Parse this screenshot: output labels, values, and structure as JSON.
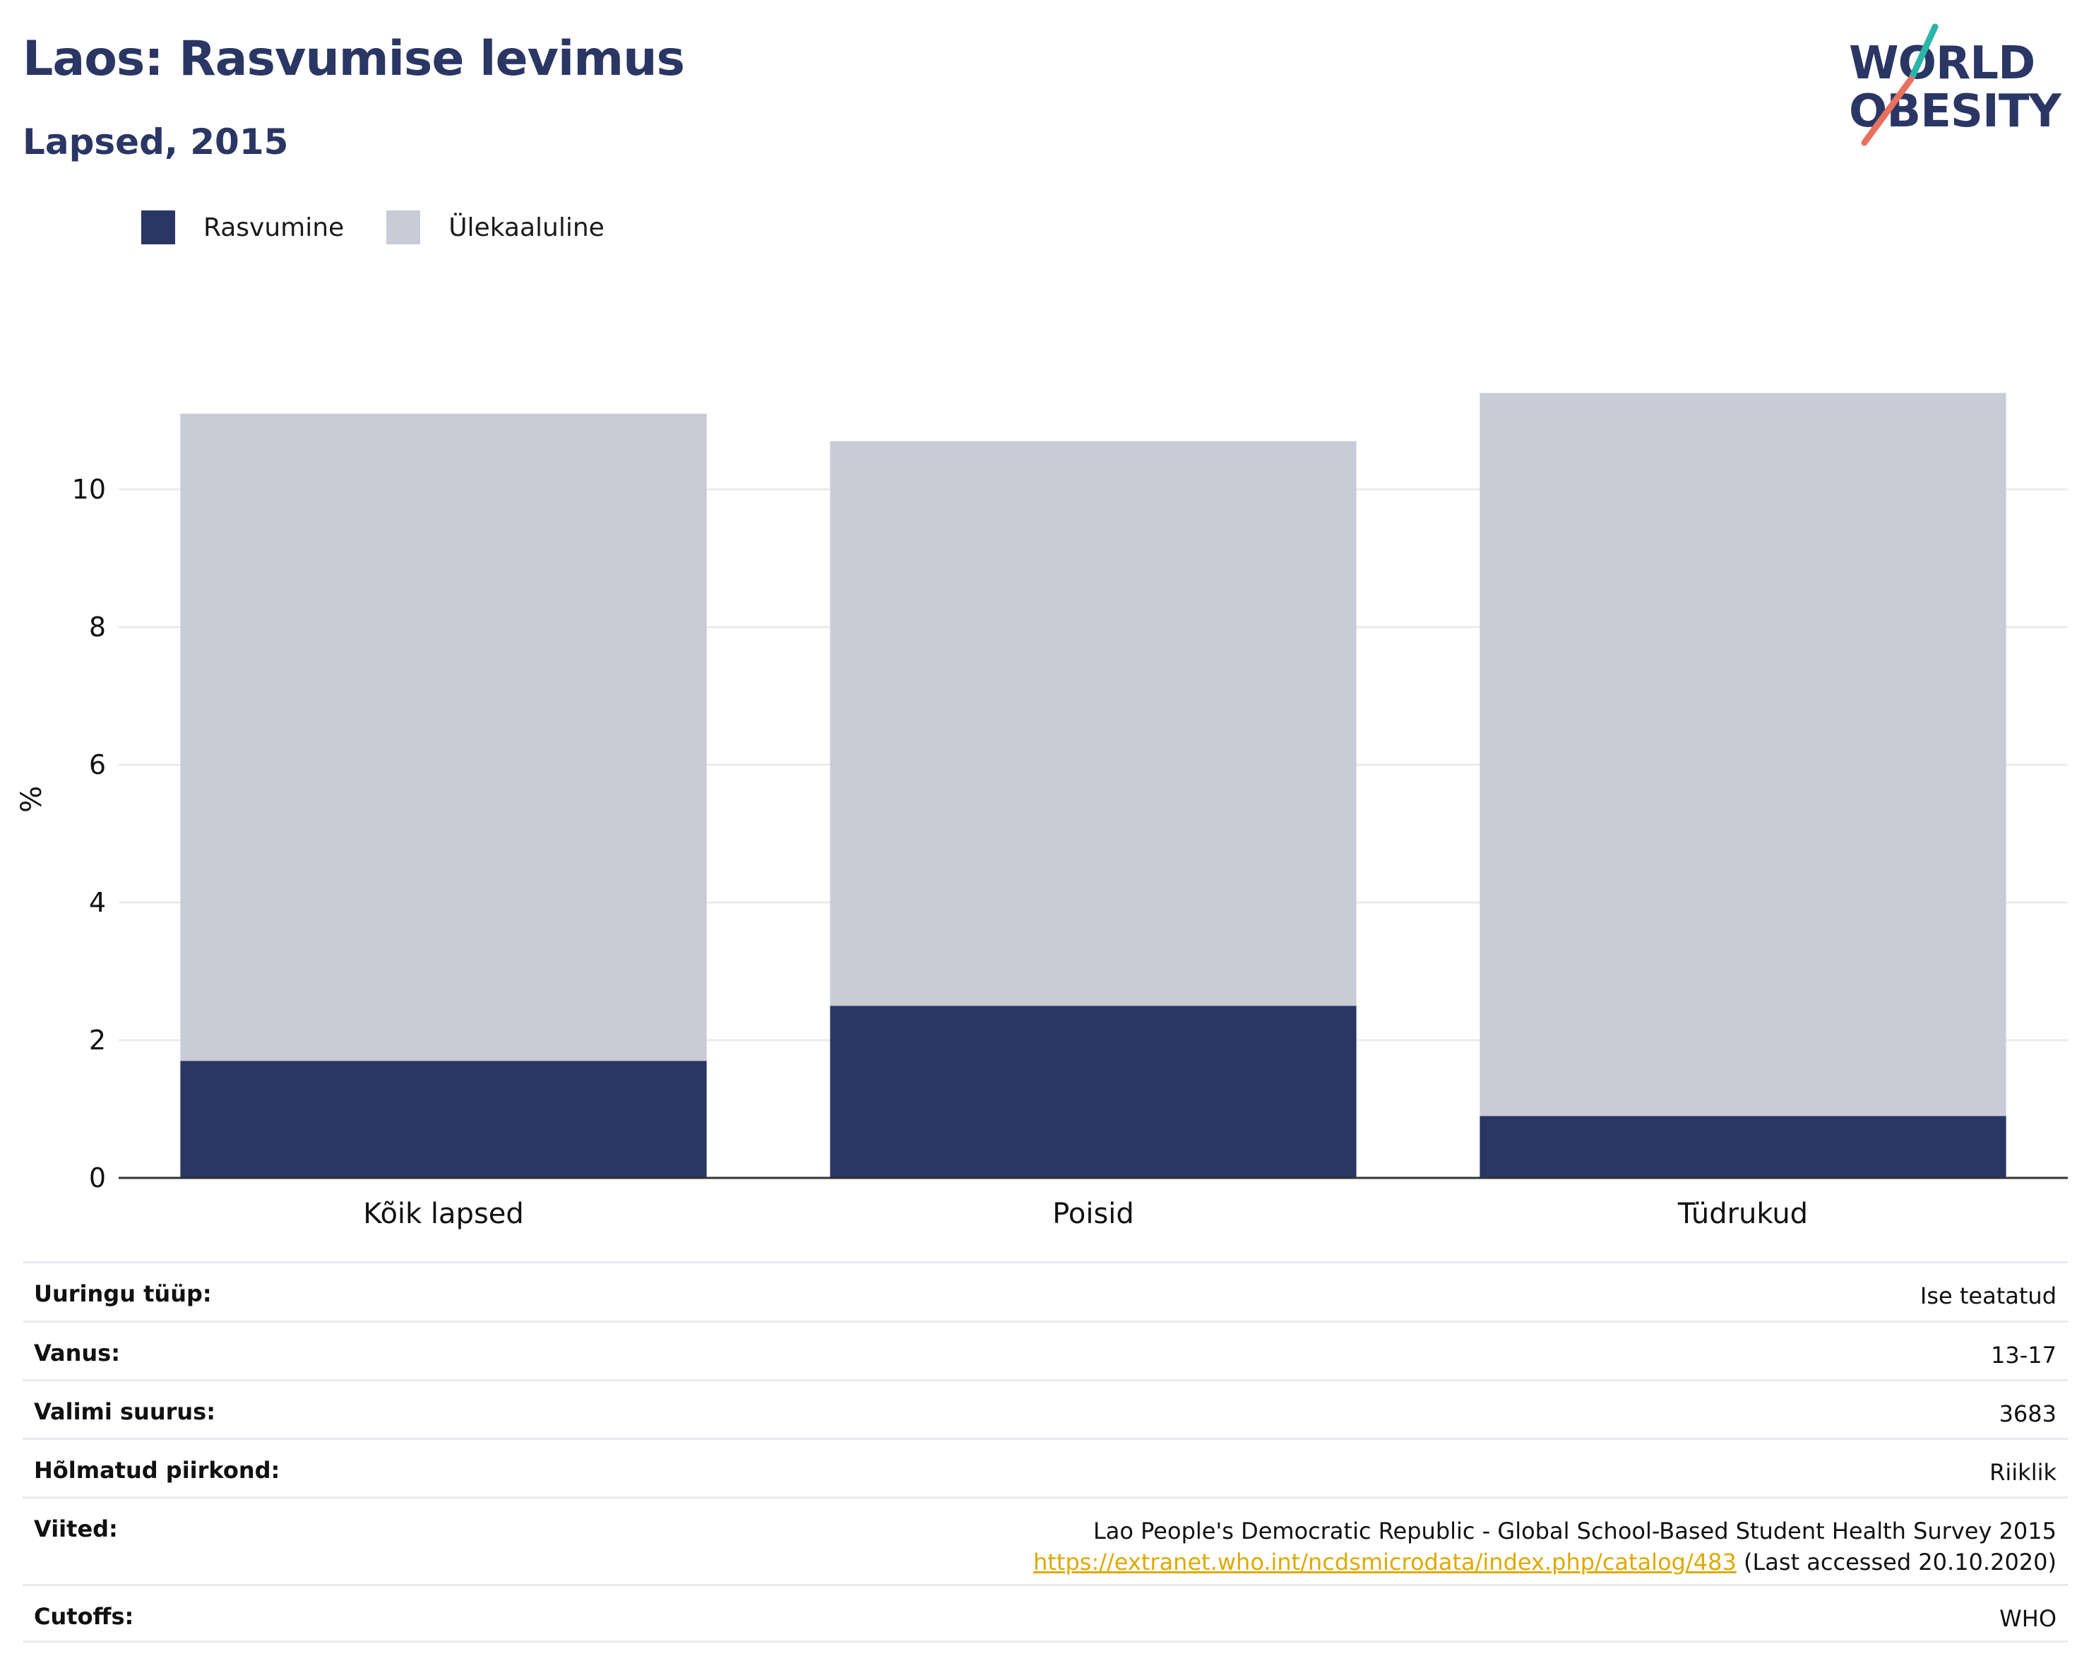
{
  "header": {
    "title": "Laos: Rasvumise levimus",
    "subtitle": "Lapsed, 2015"
  },
  "logo": {
    "line1": "WORLD",
    "line2": "OBESITY",
    "colors": {
      "navy": "#2a3663",
      "teal": "#2bb5a8",
      "coral": "#e8705f"
    }
  },
  "legend": [
    {
      "label": "Rasvumine",
      "color": "#2a3663"
    },
    {
      "label": "Ülekaaluline",
      "color": "#c9cbd6"
    }
  ],
  "chart_data": {
    "type": "bar",
    "stacked": true,
    "categories": [
      "Kõik lapsed",
      "Poisid",
      "Tüdrukud"
    ],
    "series": [
      {
        "name": "Rasvumine",
        "color": "#2a3663",
        "values": [
          1.7,
          2.5,
          0.9
        ]
      },
      {
        "name": "Ülekaaluline",
        "color": "#c9cbd6",
        "values": [
          9.4,
          8.2,
          10.5
        ]
      }
    ],
    "ylabel": "%",
    "yticks": [
      0,
      2,
      4,
      6,
      8,
      10
    ],
    "ylim": [
      0,
      11.4
    ],
    "grid": true,
    "legend_position": "top-left"
  },
  "meta": {
    "rows": [
      {
        "key": "Uuringu tüüp:",
        "value": "Ise teatatud"
      },
      {
        "key": "Vanus:",
        "value": "13-17"
      },
      {
        "key": "Valimi suurus:",
        "value": "3683"
      },
      {
        "key": "Hõlmatud piirkond:",
        "value": "Riiklik"
      }
    ],
    "references": {
      "key": "Viited:",
      "line1": "Lao People's Democratic Republic - Global School-Based Student Health Survey 2015",
      "link": "https://extranet.who.int/ncdsmicrodata/index.php/catalog/483",
      "accessed": " (Last accessed 20.10.2020)"
    },
    "cutoffs": {
      "key": "Cutoffs:",
      "value": "WHO"
    }
  }
}
